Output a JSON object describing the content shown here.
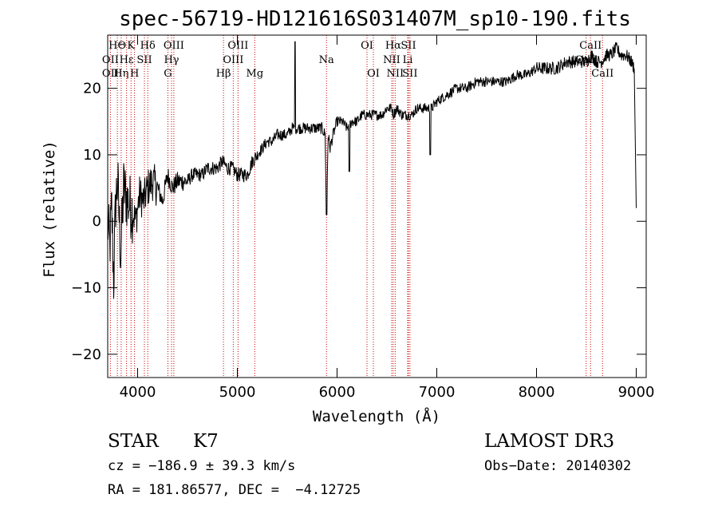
{
  "chart_data": {
    "type": "line",
    "title": "spec-56719-HD121616S031407M_sp10-190.fits",
    "xlabel": "Wavelength (Å)",
    "ylabel": "Flux (relative)",
    "xlim": [
      3700,
      9100
    ],
    "ylim": [
      -23.5,
      28
    ],
    "xticks": [
      4000,
      5000,
      6000,
      7000,
      8000,
      9000
    ],
    "yticks": [
      -20,
      -10,
      0,
      10,
      20
    ],
    "series": [
      {
        "name": "flux",
        "x": [
          3700,
          3720,
          3740,
          3760,
          3780,
          3800,
          3830,
          3860,
          3900,
          3940,
          3980,
          4020,
          4060,
          4100,
          4150,
          4200,
          4250,
          4300,
          4350,
          4400,
          4450,
          4500,
          4550,
          4600,
          4650,
          4700,
          4750,
          4800,
          4850,
          4900,
          4950,
          5000,
          5050,
          5100,
          5150,
          5200,
          5250,
          5300,
          5350,
          5400,
          5450,
          5500,
          5550,
          5600,
          5650,
          5700,
          5750,
          5800,
          5850,
          5880,
          5895,
          5910,
          5930,
          5960,
          6000,
          6050,
          6100,
          6150,
          6200,
          6250,
          6300,
          6350,
          6400,
          6450,
          6500,
          6550,
          6565,
          6600,
          6650,
          6700,
          6750,
          6800,
          6850,
          6900,
          6950,
          7000,
          7100,
          7200,
          7300,
          7400,
          7500,
          7600,
          7700,
          7800,
          7900,
          8000,
          8100,
          8200,
          8300,
          8400,
          8450,
          8500,
          8550,
          8600,
          8650,
          8700,
          8750,
          8800,
          8850,
          8900,
          8950,
          8980,
          9000
        ],
        "y": [
          0,
          -4,
          2,
          -9,
          3,
          6,
          -5,
          5,
          3,
          2,
          0,
          4,
          3,
          5,
          6,
          5,
          3,
          7,
          5,
          6,
          6,
          6,
          7,
          7,
          7,
          8,
          8,
          8,
          9,
          8,
          8,
          7,
          7,
          7,
          9,
          10,
          11,
          12,
          12,
          13,
          13,
          13,
          14,
          14,
          14,
          14,
          14,
          14,
          14,
          13,
          1,
          13,
          11,
          13,
          15,
          15,
          14,
          15,
          15,
          16,
          16,
          16,
          16,
          16,
          17,
          17,
          16,
          17,
          16,
          16,
          16,
          17,
          17,
          17,
          17,
          18,
          19,
          20,
          20,
          21,
          21,
          21,
          21,
          22,
          22,
          23,
          23,
          23,
          24,
          24,
          24,
          24,
          25,
          24,
          24,
          25,
          25,
          26,
          25,
          25,
          24,
          23,
          2
        ],
        "color": "#000000"
      }
    ],
    "lines": [
      {
        "label": "HΘ",
        "x": 3797,
        "row": 1
      },
      {
        "label": "OII",
        "x": 3727,
        "row": 2
      },
      {
        "label": "OII",
        "x": 3727,
        "row": 3
      },
      {
        "label": "K",
        "x": 3934,
        "row": 1
      },
      {
        "label": "Hε",
        "x": 3889,
        "row": 2
      },
      {
        "label": "Hη",
        "x": 3835,
        "row": 3
      },
      {
        "label": "Hδ",
        "x": 4102,
        "row": 1
      },
      {
        "label": "SII",
        "x": 4068,
        "row": 2
      },
      {
        "label": "H",
        "x": 3969,
        "row": 3
      },
      {
        "label": "OIII",
        "x": 4363,
        "row": 1
      },
      {
        "label": "Hγ",
        "x": 4340,
        "row": 2
      },
      {
        "label": "G",
        "x": 4304,
        "row": 3
      },
      {
        "label": "OIII",
        "x": 5007,
        "row": 1
      },
      {
        "label": "OIII",
        "x": 4959,
        "row": 2
      },
      {
        "label": "Hβ",
        "x": 4861,
        "row": 3
      },
      {
        "label": "Mg",
        "x": 5175,
        "row": 3
      },
      {
        "label": "Na",
        "x": 5894,
        "row": 2
      },
      {
        "label": "OI",
        "x": 6300,
        "row": 1
      },
      {
        "label": "OI",
        "x": 6364,
        "row": 3
      },
      {
        "label": "Hα",
        "x": 6563,
        "row": 1
      },
      {
        "label": "SII",
        "x": 6716,
        "row": 1
      },
      {
        "label": "NII",
        "x": 6548,
        "row": 2
      },
      {
        "label": "Li",
        "x": 6708,
        "row": 2
      },
      {
        "label": "NII",
        "x": 6583,
        "row": 3
      },
      {
        "label": "SII",
        "x": 6731,
        "row": 3
      },
      {
        "label": "CaII",
        "x": 8542,
        "row": 1
      },
      {
        "label": "CaII",
        "x": 8498,
        "row": 2
      },
      {
        "label": "CaII",
        "x": 8662,
        "row": 3
      }
    ],
    "line_color": "#cc0000"
  },
  "info": {
    "class_label": "STAR",
    "subclass": "K7",
    "survey": "LAMOST DR3",
    "cz": "cz = −186.9 ± 39.3 km/s",
    "obs_date": "Obs−Date: 20140302",
    "radec": "RA = 181.86577, DEC =  −4.12725"
  }
}
